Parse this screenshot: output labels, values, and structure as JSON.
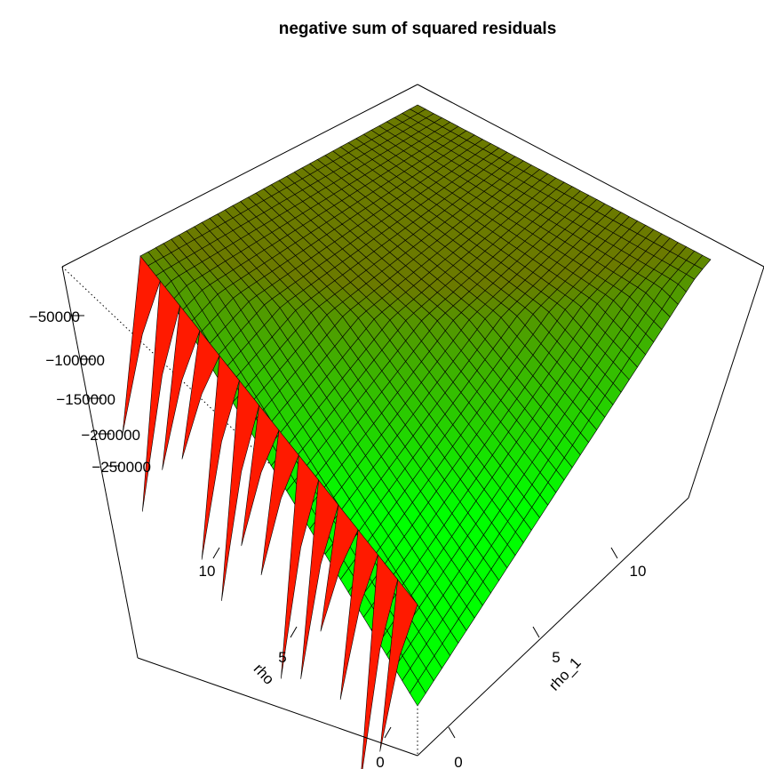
{
  "chart_data": {
    "type": "surface3d",
    "title": "negative sum of squared residuals",
    "xlabel": "rho",
    "ylabel": "rho_1",
    "zlabel": "",
    "x_ticks": [
      "0",
      "5",
      "10"
    ],
    "y_ticks": [
      "0",
      "5",
      "10"
    ],
    "z_ticks": [
      "-50000",
      "-100000",
      "-150000",
      "-200000",
      "-250000"
    ],
    "z_tick_labels": [
      "−50000",
      "−100000",
      "−150000",
      "−200000",
      "−250000"
    ],
    "xlim": [
      0,
      15
    ],
    "ylim": [
      0,
      15
    ],
    "zlim": [
      -290000,
      -20000
    ],
    "color_scale": [
      "#ff1a00",
      "#6b7a00",
      "#00ff00"
    ]
  }
}
